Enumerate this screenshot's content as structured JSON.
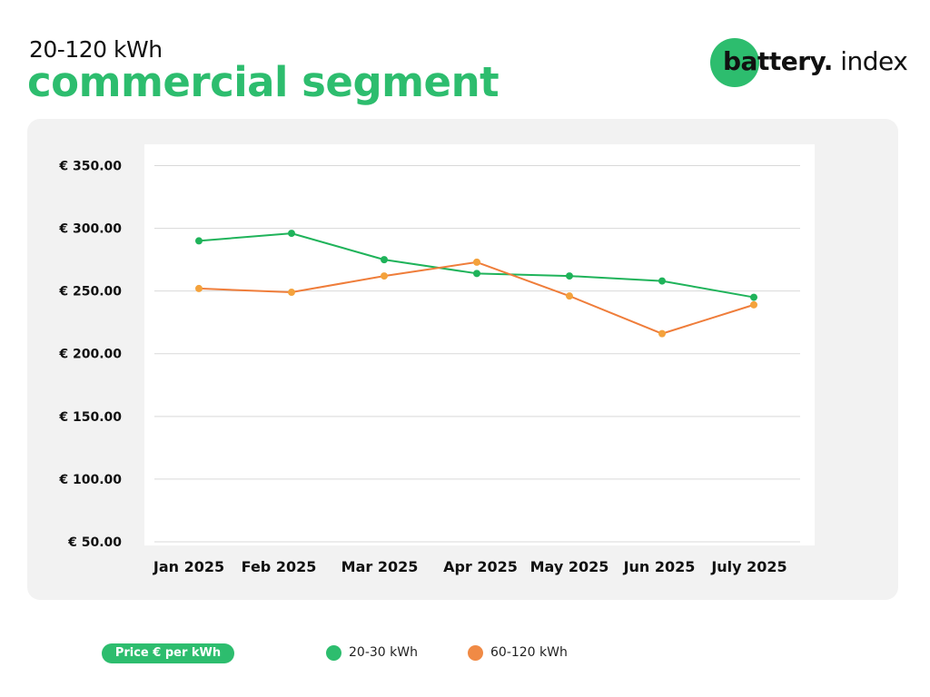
{
  "header": {
    "subtitle": "20-120 kWh",
    "title": "commercial segment"
  },
  "logo": {
    "bold_text": "battery.",
    "light_text": " index",
    "circle_color": "#2dbd6e"
  },
  "legend": {
    "pill_label": "Price € per kWh",
    "items": [
      {
        "label": "20-30 kWh",
        "color": "#2dbd6e"
      },
      {
        "label": "60-120 kWh",
        "color": "#f08a45"
      }
    ]
  },
  "chart_data": {
    "type": "line",
    "categories": [
      "Jan 2025",
      "Feb 2025",
      "Mar 2025",
      "Apr 2025",
      "May 2025",
      "Jun 2025",
      "July 2025"
    ],
    "series": [
      {
        "name": "20-30 kWh",
        "color": "#1fb35a",
        "marker_color": "#1fb35a",
        "values": [
          290,
          296,
          275,
          264,
          262,
          258,
          245
        ]
      },
      {
        "name": "60-120 kWh",
        "color": "#ef7d3a",
        "marker_color": "#f4a23c",
        "values": [
          252,
          249,
          262,
          273,
          246,
          216,
          239
        ]
      }
    ],
    "y_ticks": [
      50,
      100,
      150,
      200,
      250,
      300,
      350
    ],
    "y_tick_labels": [
      "€ 50.00",
      "€ 100.00",
      "€ 150.00",
      "€ 200.00",
      "€ 250.00",
      "€ 300.00",
      "€ 350.00"
    ],
    "ylim": [
      50,
      350
    ],
    "grid": true,
    "legend_position": "bottom"
  }
}
